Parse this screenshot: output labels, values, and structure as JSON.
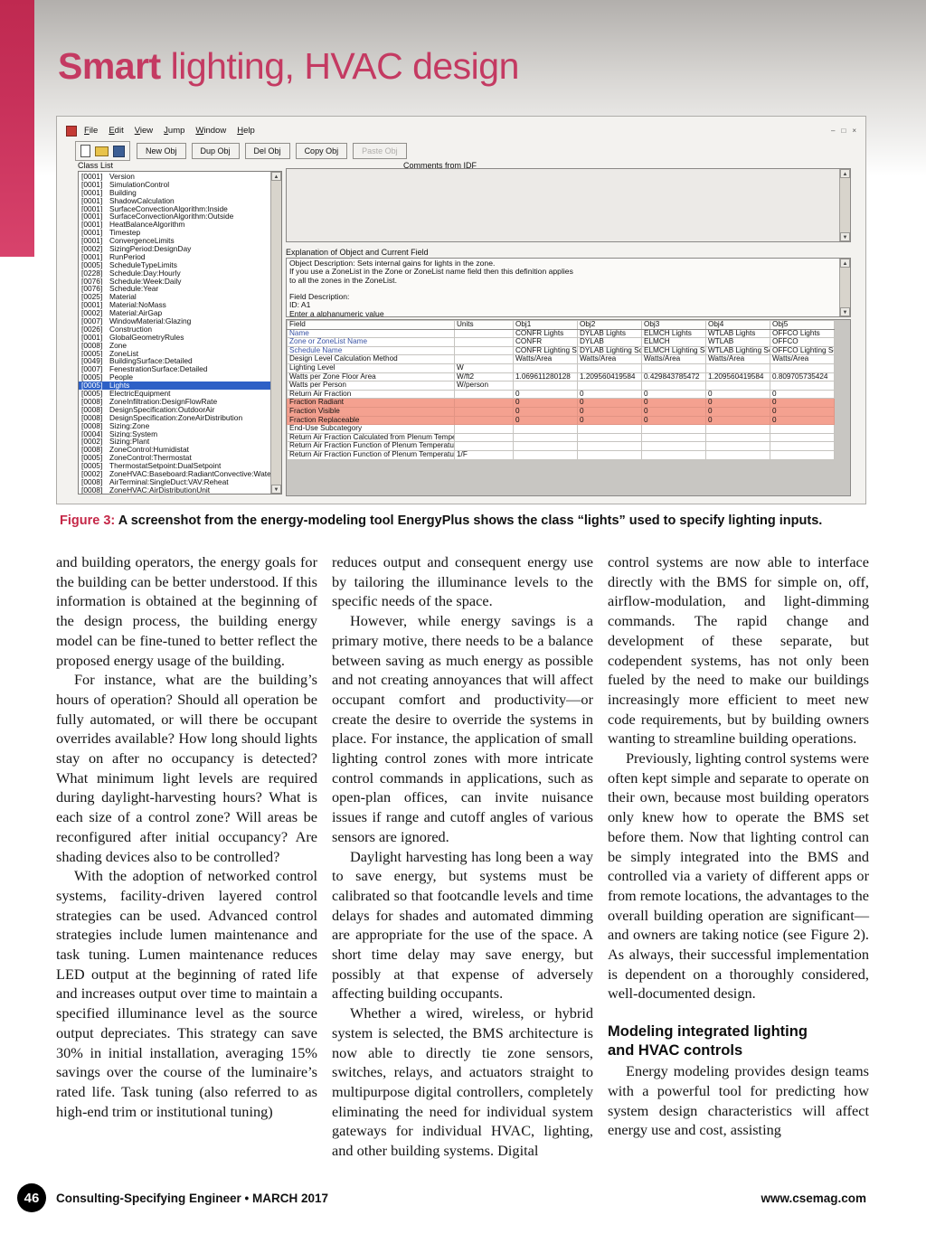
{
  "page": {
    "title_bold": "Smart",
    "title_rest": " lighting, HVAC design",
    "accent_color": "#c43a62"
  },
  "app": {
    "menus": [
      "File",
      "Edit",
      "View",
      "Jump",
      "Window",
      "Help"
    ],
    "window_controls": [
      {
        "name": "minimize",
        "glyph": "–"
      },
      {
        "name": "restore",
        "glyph": "□"
      },
      {
        "name": "close",
        "glyph": "×"
      }
    ],
    "toolbar_icons": [
      "new-file-icon",
      "open-folder-icon",
      "save-icon"
    ],
    "toolbar_buttons": [
      {
        "label": "New Obj",
        "enabled": true
      },
      {
        "label": "Dup Obj",
        "enabled": true
      },
      {
        "label": "Del Obj",
        "enabled": true
      },
      {
        "label": "Copy Obj",
        "enabled": true
      },
      {
        "label": "Paste Obj",
        "enabled": false
      }
    ],
    "labels": {
      "class_list": "Class List",
      "comments": "Comments from IDF",
      "explanation": "Explanation of Object and Current Field"
    },
    "class_list": {
      "items": [
        {
          "count": "[0001]",
          "name": "Version",
          "selected": false
        },
        {
          "count": "[0001]",
          "name": "SimulationControl",
          "selected": false
        },
        {
          "count": "[0001]",
          "name": "Building",
          "selected": false
        },
        {
          "count": "[0001]",
          "name": "ShadowCalculation",
          "selected": false
        },
        {
          "count": "[0001]",
          "name": "SurfaceConvectionAlgorithm:Inside",
          "selected": false
        },
        {
          "count": "[0001]",
          "name": "SurfaceConvectionAlgorithm:Outside",
          "selected": false
        },
        {
          "count": "[0001]",
          "name": "HeatBalanceAlgorithm",
          "selected": false
        },
        {
          "count": "[0001]",
          "name": "Timestep",
          "selected": false
        },
        {
          "count": "[0001]",
          "name": "ConvergenceLimits",
          "selected": false
        },
        {
          "count": "[0002]",
          "name": "SizingPeriod:DesignDay",
          "selected": false
        },
        {
          "count": "[0001]",
          "name": "RunPeriod",
          "selected": false
        },
        {
          "count": "[0005]",
          "name": "ScheduleTypeLimits",
          "selected": false
        },
        {
          "count": "[0228]",
          "name": "Schedule:Day:Hourly",
          "selected": false
        },
        {
          "count": "[0076]",
          "name": "Schedule:Week:Daily",
          "selected": false
        },
        {
          "count": "[0076]",
          "name": "Schedule:Year",
          "selected": false
        },
        {
          "count": "[0025]",
          "name": "Material",
          "selected": false
        },
        {
          "count": "[0001]",
          "name": "Material:NoMass",
          "selected": false
        },
        {
          "count": "[0002]",
          "name": "Material:AirGap",
          "selected": false
        },
        {
          "count": "[0007]",
          "name": "WindowMaterial:Glazing",
          "selected": false
        },
        {
          "count": "[0026]",
          "name": "Construction",
          "selected": false
        },
        {
          "count": "[0001]",
          "name": "GlobalGeometryRules",
          "selected": false
        },
        {
          "count": "[0008]",
          "name": "Zone",
          "selected": false
        },
        {
          "count": "[0005]",
          "name": "ZoneList",
          "selected": false
        },
        {
          "count": "[0049]",
          "name": "BuildingSurface:Detailed",
          "selected": false
        },
        {
          "count": "[0007]",
          "name": "FenestrationSurface:Detailed",
          "selected": false
        },
        {
          "count": "[0005]",
          "name": "People",
          "selected": false
        },
        {
          "count": "[0005]",
          "name": "Lights",
          "selected": true
        },
        {
          "count": "[0005]",
          "name": "ElectricEquipment",
          "selected": false
        },
        {
          "count": "[0008]",
          "name": "ZoneInfiltration:DesignFlowRate",
          "selected": false
        },
        {
          "count": "[0008]",
          "name": "DesignSpecification:OutdoorAir",
          "selected": false
        },
        {
          "count": "[0008]",
          "name": "DesignSpecification:ZoneAirDistribution",
          "selected": false
        },
        {
          "count": "[0008]",
          "name": "Sizing:Zone",
          "selected": false
        },
        {
          "count": "[0004]",
          "name": "Sizing:System",
          "selected": false
        },
        {
          "count": "[0002]",
          "name": "Sizing:Plant",
          "selected": false
        },
        {
          "count": "[0008]",
          "name": "ZoneControl:Humidistat",
          "selected": false
        },
        {
          "count": "[0005]",
          "name": "ZoneControl:Thermostat",
          "selected": false
        },
        {
          "count": "[0005]",
          "name": "ThermostatSetpoint:DualSetpoint",
          "selected": false
        },
        {
          "count": "[0002]",
          "name": "ZoneHVAC:Baseboard:RadiantConvective:Water",
          "selected": false
        },
        {
          "count": "[0008]",
          "name": "AirTerminal:SingleDuct:VAV:Reheat",
          "selected": false
        },
        {
          "count": "[0008]",
          "name": "ZoneHVAC:AirDistributionUnit",
          "selected": false
        }
      ]
    },
    "explanation_lines": [
      "Object Description: Sets internal gains for lights in the zone.",
      "If you use a ZoneList in the Zone or ZoneList name field then this definition applies",
      "to all the zones in the ZoneList.",
      "",
      "Field Description:",
      "ID: A1",
      "Enter a alphanumeric value"
    ],
    "table": {
      "headers": [
        "Field",
        "Units",
        "Obj1",
        "Obj2",
        "Obj3",
        "Obj4",
        "Obj5"
      ],
      "rows": [
        {
          "field": "Name",
          "units": "",
          "blue": true,
          "highlight": false,
          "values": [
            "CONFR Lights",
            "DYLAB Lights",
            "ELMCH Lights",
            "WTLAB Lights",
            "OFFCO Lights"
          ]
        },
        {
          "field": "Zone or ZoneList Name",
          "units": "",
          "blue": true,
          "highlight": false,
          "values": [
            "CONFR",
            "DYLAB",
            "ELMCH",
            "WTLAB",
            "OFFCO"
          ]
        },
        {
          "field": "Schedule Name",
          "units": "",
          "blue": true,
          "highlight": false,
          "values": [
            "CONFR Lighting Sc",
            "DYLAB Lighting Sch",
            "ELMCH Lighting Sc",
            "WTLAB Lighting Sc",
            "OFFCO Lighting Sch"
          ]
        },
        {
          "field": "Design Level Calculation Method",
          "units": "",
          "blue": false,
          "highlight": false,
          "values": [
            "Watts/Area",
            "Watts/Area",
            "Watts/Area",
            "Watts/Area",
            "Watts/Area"
          ]
        },
        {
          "field": "Lighting Level",
          "units": "W",
          "blue": false,
          "highlight": false,
          "values": [
            "",
            "",
            "",
            "",
            ""
          ]
        },
        {
          "field": "Watts per Zone Floor Area",
          "units": "W/ft2",
          "blue": false,
          "highlight": false,
          "values": [
            "1.069611280128",
            "1.209560419584",
            "0.429843785472",
            "1.209560419584",
            "0.809705735424"
          ]
        },
        {
          "field": "Watts per Person",
          "units": "W/person",
          "blue": false,
          "highlight": false,
          "values": [
            "",
            "",
            "",
            "",
            ""
          ]
        },
        {
          "field": "Return Air Fraction",
          "units": "",
          "blue": false,
          "highlight": false,
          "values": [
            "0",
            "0",
            "0",
            "0",
            "0"
          ]
        },
        {
          "field": "Fraction Radiant",
          "units": "",
          "blue": false,
          "highlight": true,
          "values": [
            "0",
            "0",
            "0",
            "0",
            "0"
          ]
        },
        {
          "field": "Fraction Visible",
          "units": "",
          "blue": false,
          "highlight": true,
          "values": [
            "0",
            "0",
            "0",
            "0",
            "0"
          ]
        },
        {
          "field": "Fraction Replaceable",
          "units": "",
          "blue": false,
          "highlight": true,
          "values": [
            "0",
            "0",
            "0",
            "0",
            "0"
          ]
        },
        {
          "field": "End-Use Subcategory",
          "units": "",
          "blue": false,
          "highlight": false,
          "values": [
            "",
            "",
            "",
            "",
            ""
          ]
        },
        {
          "field": "Return Air Fraction Calculated from Plenum Temperatur",
          "units": "",
          "blue": false,
          "highlight": false,
          "values": [
            "",
            "",
            "",
            "",
            ""
          ]
        },
        {
          "field": "Return Air Fraction Function of Plenum Temperature Co",
          "units": "",
          "blue": false,
          "highlight": false,
          "values": [
            "",
            "",
            "",
            "",
            ""
          ]
        },
        {
          "field": "Return Air Fraction Function of Plenum Temperature Co",
          "units": "1/F",
          "blue": false,
          "highlight": false,
          "values": [
            "",
            "",
            "",
            "",
            ""
          ]
        }
      ]
    }
  },
  "figure_caption": {
    "label": "Figure 3: ",
    "text": "A screenshot from the energy-modeling tool EnergyPlus shows the class “lights” used to specify lighting inputs."
  },
  "article": {
    "columns": [
      {
        "blocks": [
          {
            "type": "p",
            "indent": false,
            "text": "and building operators, the energy goals for the building can be better understood. If this information is obtained at the beginning of the design process, the building energy model can be fine-tuned to better reflect the proposed energy usage of the building."
          },
          {
            "type": "p",
            "indent": true,
            "text": "For instance, what are the building’s hours of operation? Should all operation be fully automated, or will there be occupant overrides available? How long should lights stay on after no occupancy is detected? What minimum light levels are required during daylight-harvesting hours? What is each size of a control zone? Will areas be reconfigured after initial occupancy? Are shading devices also to be controlled?"
          },
          {
            "type": "p",
            "indent": true,
            "text": "With the adoption of networked control systems, facility-driven layered control strategies can be used. Advanced control strategies include lumen maintenance and task tuning. Lumen maintenance reduces LED output at the beginning of rated life and increases output over time to maintain a specified illuminance level as the source output depreciates. This strategy can save 30% in initial installation, averaging 15% savings over the course of the luminaire’s rated life. Task tuning (also referred to as high-end trim or institutional tuning)"
          }
        ]
      },
      {
        "blocks": [
          {
            "type": "p",
            "indent": false,
            "text": "reduces output and consequent energy use by tailoring the illuminance levels to the specific needs of the space."
          },
          {
            "type": "p",
            "indent": true,
            "text": "However, while energy savings is a primary motive, there needs to be a balance between saving as much energy as possible and not creating annoyances that will affect occupant comfort and productivity—or create the desire to override the systems in place. For instance, the application of small lighting control zones with more intricate control commands in applications, such as open-plan offices, can invite nuisance issues if range and cutoff angles of various sensors are ignored."
          },
          {
            "type": "p",
            "indent": true,
            "text": "Daylight harvesting has long been a way to save energy, but systems must be calibrated so that footcandle levels and time delays for shades and automated dimming are appropriate for the use of the space. A short time delay may save energy, but possibly at that expense of adversely affecting building occupants."
          },
          {
            "type": "p",
            "indent": true,
            "text": "Whether a wired, wireless, or hybrid system is selected, the BMS architecture is now able to directly tie zone sensors, switches, relays, and actuators straight to multipurpose digital controllers, completely eliminating the need for individual system gateways for individual HVAC, lighting, and other building systems. Digital"
          }
        ]
      },
      {
        "blocks": [
          {
            "type": "p",
            "indent": false,
            "text": "control systems are now able to interface directly with the BMS for simple on, off, airflow-modulation, and light-dimming commands. The rapid change and development of these separate, but codependent systems, has not only been fueled by the need to make our buildings increasingly more efficient to meet new code requirements, but by building owners wanting to streamline building operations."
          },
          {
            "type": "p",
            "indent": true,
            "text": "Previously, lighting control systems were often kept simple and separate to operate on their own, because most building operators only knew how to operate the BMS set before them. Now that lighting control can be simply integrated into the BMS and controlled via a variety of different apps or from remote locations, the advantages to the overall building operation are significant—and owners are taking notice (see Figure 2). As always, their successful implementation is dependent on a thoroughly considered, well-documented design."
          },
          {
            "type": "h",
            "indent": false,
            "text": "Modeling integrated lighting\nand HVAC controls"
          },
          {
            "type": "p",
            "indent": true,
            "text": "Energy modeling provides design teams with a powerful tool for predicting how system design characteristics will affect energy use and cost, assisting"
          }
        ]
      }
    ]
  },
  "footer": {
    "page_number": "46",
    "left_text": "Consulting-Specifying Engineer • MARCH 2017",
    "right_text": "www.csemag.com"
  }
}
